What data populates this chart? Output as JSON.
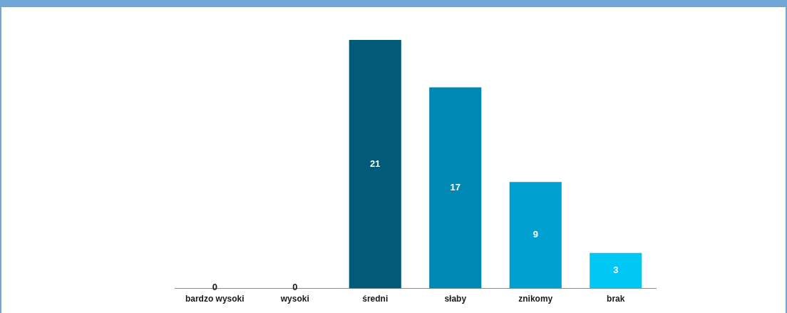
{
  "chart_data": {
    "type": "bar",
    "categories": [
      "bardzo wysoki",
      "wysoki",
      "średni",
      "słaby",
      "znikomy",
      "brak"
    ],
    "values": [
      0,
      0,
      21,
      17,
      9,
      3
    ],
    "colors": [
      "#003d52",
      "#004a64",
      "#005a78",
      "#0088b4",
      "#00a0d0",
      "#00c8f5"
    ],
    "data_labels": true,
    "grid": false,
    "legend": false,
    "tick_labels": "x"
  }
}
